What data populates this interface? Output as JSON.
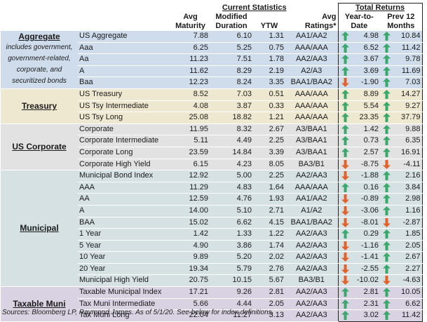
{
  "colors": {
    "aggregate": "#cfdceb",
    "treasury": "#efe8d0",
    "us_corporate": "#e2e2e2",
    "municipal": "#d6e1e4",
    "taxable_muni": "#d9d2e2",
    "up_arrow": "#3aa86a",
    "down_arrow": "#e2622b"
  },
  "header": {
    "current_statistics": "Current Statistics",
    "total_returns": "Total Returns",
    "avg_1": "Avg",
    "maturity": "Maturity",
    "modified": "Modified",
    "duration": "Duration",
    "ytw": "YTW",
    "avg_2": "Avg",
    "ratings": "Ratings*",
    "year_to": "Year-to-",
    "date": "Date",
    "prev_12": "Prev 12",
    "months": "Months"
  },
  "categories": [
    {
      "name": "Aggregate",
      "note": "includes government, government-related, corporate, and securitized bonds",
      "color_key": "aggregate",
      "rows": [
        {
          "index": "US Aggregate",
          "maturity": "7.88",
          "duration": "6.10",
          "ytw": "1.31",
          "ratings": "AA1/AA2",
          "ytd": "4.98",
          "ytd_dir": "up",
          "prev12": "10.84",
          "prev12_dir": "up"
        },
        {
          "index": "Aaa",
          "maturity": "6.25",
          "duration": "5.25",
          "ytw": "0.75",
          "ratings": "AAA/AAA",
          "ytd": "6.52",
          "ytd_dir": "up",
          "prev12": "11.42",
          "prev12_dir": "up"
        },
        {
          "index": "Aa",
          "maturity": "11.23",
          "duration": "7.51",
          "ytw": "1.78",
          "ratings": "AA2/AA3",
          "ytd": "3.67",
          "ytd_dir": "up",
          "prev12": "9.78",
          "prev12_dir": "up"
        },
        {
          "index": "A",
          "maturity": "11.62",
          "duration": "8.29",
          "ytw": "2.19",
          "ratings": "A2/A3",
          "ytd": "3.69",
          "ytd_dir": "up",
          "prev12": "11.69",
          "prev12_dir": "up"
        },
        {
          "index": "Baa",
          "maturity": "12.23",
          "duration": "8.24",
          "ytw": "3.35",
          "ratings": "BAA1/BAA2",
          "ytd": "-1.90",
          "ytd_dir": "down",
          "prev12": "7.03",
          "prev12_dir": "up"
        }
      ]
    },
    {
      "name": "Treasury",
      "note": "",
      "color_key": "treasury",
      "rows": [
        {
          "index": "US Treasury",
          "maturity": "8.52",
          "duration": "7.03",
          "ytw": "0.51",
          "ratings": "AAA/AAA",
          "ytd": "8.89",
          "ytd_dir": "up",
          "prev12": "14.27",
          "prev12_dir": "up"
        },
        {
          "index": "US Tsy Intermediate",
          "maturity": "4.08",
          "duration": "3.87",
          "ytw": "0.33",
          "ratings": "AAA/AAA",
          "ytd": "5.54",
          "ytd_dir": "up",
          "prev12": "9.27",
          "prev12_dir": "up"
        },
        {
          "index": "US Tsy Long",
          "maturity": "25.08",
          "duration": "18.82",
          "ytw": "1.21",
          "ratings": "AAA/AAA",
          "ytd": "23.35",
          "ytd_dir": "up",
          "prev12": "37.79",
          "prev12_dir": "up"
        }
      ]
    },
    {
      "name": "US Corporate",
      "note": "",
      "color_key": "us_corporate",
      "rows": [
        {
          "index": "Corporate",
          "maturity": "11.95",
          "duration": "8.32",
          "ytw": "2.67",
          "ratings": "A3/BAA1",
          "ytd": "1.42",
          "ytd_dir": "up",
          "prev12": "9.88",
          "prev12_dir": "up"
        },
        {
          "index": "Corporate Intermediate",
          "maturity": "5.11",
          "duration": "4.49",
          "ytw": "2.25",
          "ratings": "A3/BAA1",
          "ytd": "0.73",
          "ytd_dir": "up",
          "prev12": "6.35",
          "prev12_dir": "up"
        },
        {
          "index": "Corporate Long",
          "maturity": "23.59",
          "duration": "14.84",
          "ytw": "3.39",
          "ratings": "A3/BAA1",
          "ytd": "2.57",
          "ytd_dir": "up",
          "prev12": "16.91",
          "prev12_dir": "up"
        },
        {
          "index": "Corporate High Yield",
          "maturity": "6.15",
          "duration": "4.23",
          "ytw": "8.05",
          "ratings": "BA3/B1",
          "ytd": "-8.75",
          "ytd_dir": "down",
          "prev12": "-4.11",
          "prev12_dir": "down"
        }
      ]
    },
    {
      "name": "Municipal",
      "note": "",
      "color_key": "municipal",
      "rows": [
        {
          "index": "Municipal Bond Index",
          "maturity": "12.92",
          "duration": "5.00",
          "ytw": "2.25",
          "ratings": "AA2/AA3",
          "ytd": "-1.88",
          "ytd_dir": "down",
          "prev12": "2.16",
          "prev12_dir": "up"
        },
        {
          "index": "AAA",
          "maturity": "11.29",
          "duration": "4.83",
          "ytw": "1.64",
          "ratings": "AAA/AAA",
          "ytd": "0.16",
          "ytd_dir": "up",
          "prev12": "3.84",
          "prev12_dir": "up"
        },
        {
          "index": "AA",
          "maturity": "12.59",
          "duration": "4.76",
          "ytw": "1.93",
          "ratings": "AA1/AA2",
          "ytd": "-0.89",
          "ytd_dir": "down",
          "prev12": "2.98",
          "prev12_dir": "up"
        },
        {
          "index": "A",
          "maturity": "14.00",
          "duration": "5.10",
          "ytw": "2.71",
          "ratings": "A1/A2",
          "ytd": "-3.06",
          "ytd_dir": "down",
          "prev12": "1.16",
          "prev12_dir": "up"
        },
        {
          "index": "BAA",
          "maturity": "15.02",
          "duration": "6.62",
          "ytw": "4.15",
          "ratings": "BAA1/BAA2",
          "ytd": "-8.01",
          "ytd_dir": "down",
          "prev12": "-2.87",
          "prev12_dir": "down"
        },
        {
          "index": "1 Year",
          "maturity": "1.42",
          "duration": "1.33",
          "ytw": "1.22",
          "ratings": "AA2/AA3",
          "ytd": "0.29",
          "ytd_dir": "up",
          "prev12": "1.85",
          "prev12_dir": "up"
        },
        {
          "index": "5 Year",
          "maturity": "4.90",
          "duration": "3.86",
          "ytw": "1.74",
          "ratings": "AA2/AA3",
          "ytd": "-1.16",
          "ytd_dir": "down",
          "prev12": "2.05",
          "prev12_dir": "up"
        },
        {
          "index": "10 Year",
          "maturity": "9.89",
          "duration": "5.20",
          "ytw": "2.02",
          "ratings": "AA2/AA3",
          "ytd": "-1.41",
          "ytd_dir": "down",
          "prev12": "2.67",
          "prev12_dir": "up"
        },
        {
          "index": "20 Year",
          "maturity": "19.34",
          "duration": "5.79",
          "ytw": "2.76",
          "ratings": "AA2/AA3",
          "ytd": "-2.55",
          "ytd_dir": "down",
          "prev12": "2.27",
          "prev12_dir": "up"
        },
        {
          "index": "Municipal High Yield",
          "maturity": "20.75",
          "duration": "10.15",
          "ytw": "5.67",
          "ratings": "BA3/B1",
          "ytd": "-10.02",
          "ytd_dir": "down",
          "prev12": "-4.63",
          "prev12_dir": "down"
        }
      ]
    },
    {
      "name": "Taxable Muni",
      "note": "",
      "color_key": "taxable_muni",
      "rows": [
        {
          "index": "Taxable Municipal Index",
          "maturity": "17.21",
          "duration": "9.26",
          "ytw": "2.81",
          "ratings": "AA2/AA3",
          "ytd": "2.81",
          "ytd_dir": "up",
          "prev12": "10.05",
          "prev12_dir": "up"
        },
        {
          "index": "Tax Muni Intermediate",
          "maturity": "5.66",
          "duration": "4.44",
          "ytw": "2.05",
          "ratings": "AA2/AA3",
          "ytd": "2.31",
          "ytd_dir": "up",
          "prev12": "6.62",
          "prev12_dir": "up"
        },
        {
          "index": "Tax Muni Long",
          "maturity": "22.04",
          "duration": "11.27",
          "ytw": "3.13",
          "ratings": "AA2/AA3",
          "ytd": "3.02",
          "ytd_dir": "up",
          "prev12": "11.42",
          "prev12_dir": "up"
        }
      ]
    }
  ],
  "source_text": "Sources: Bloomberg LP, Raymond James. As of 5/1/20. See below for index definitions."
}
